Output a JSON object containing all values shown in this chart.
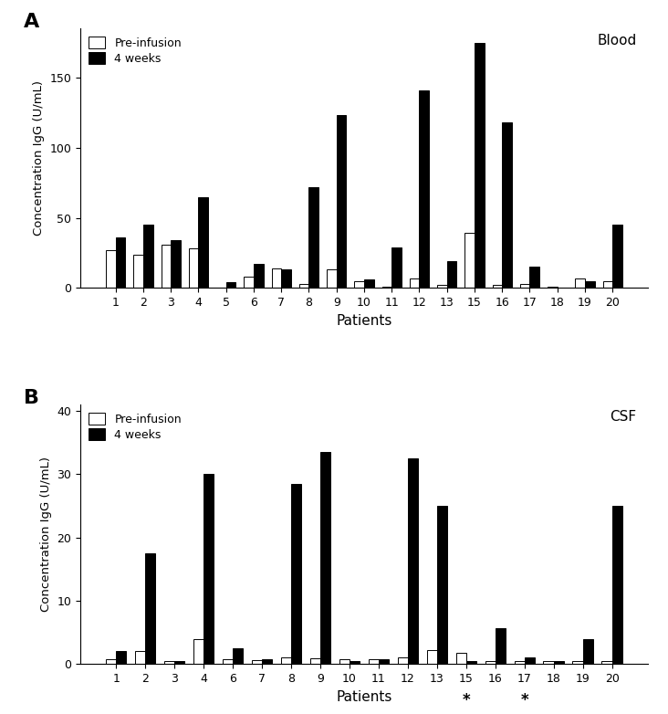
{
  "panel_A": {
    "patients": [
      "1",
      "2",
      "3",
      "4",
      "5",
      "6",
      "7",
      "8",
      "9",
      "10",
      "11",
      "12",
      "13",
      "15",
      "16",
      "17",
      "18",
      "19",
      "20"
    ],
    "pre_infusion": [
      27,
      24,
      31,
      28,
      0,
      8,
      14,
      3,
      13,
      5,
      1,
      7,
      2,
      39,
      2,
      3,
      1,
      7,
      5
    ],
    "four_weeks": [
      36,
      45,
      34,
      65,
      4,
      17,
      13,
      72,
      123,
      6,
      29,
      141,
      19,
      175,
      118,
      15,
      0,
      5,
      45
    ],
    "ylabel": "Concentration IgG (U/mL)",
    "xlabel": "Patients",
    "label_text": "Blood",
    "yticks": [
      0,
      50,
      100,
      150
    ],
    "ylim": [
      0,
      185
    ]
  },
  "panel_B": {
    "patients": [
      "1",
      "2",
      "3",
      "4",
      "6",
      "7",
      "8",
      "9",
      "10",
      "11",
      "12",
      "13",
      "15",
      "16",
      "17",
      "18",
      "19",
      "20"
    ],
    "pre_infusion": [
      0.7,
      2.0,
      0.5,
      4.0,
      0.7,
      0.6,
      1.0,
      0.9,
      0.8,
      0.8,
      1.0,
      2.2,
      1.8,
      0.5,
      0.5,
      0.5,
      0.5,
      0.4
    ],
    "four_weeks": [
      2.0,
      17.5,
      0.5,
      30.0,
      2.5,
      0.8,
      28.5,
      33.5,
      0.5,
      0.7,
      32.5,
      25.0,
      0.5,
      5.7,
      1.0,
      0.5,
      4.0,
      25.0
    ],
    "ylabel": "Concentration IgG (U/mL)",
    "xlabel": "Patients",
    "label_text": "CSF",
    "yticks": [
      0,
      10,
      20,
      30,
      40
    ],
    "ylim": [
      0,
      41
    ],
    "star_patients": [
      "15",
      "17"
    ]
  },
  "legend_pre": "Pre-infusion",
  "legend_4w": "4 weeks",
  "bar_width": 0.35,
  "color_pre": "white",
  "color_4w": "black",
  "edge_color": "black"
}
